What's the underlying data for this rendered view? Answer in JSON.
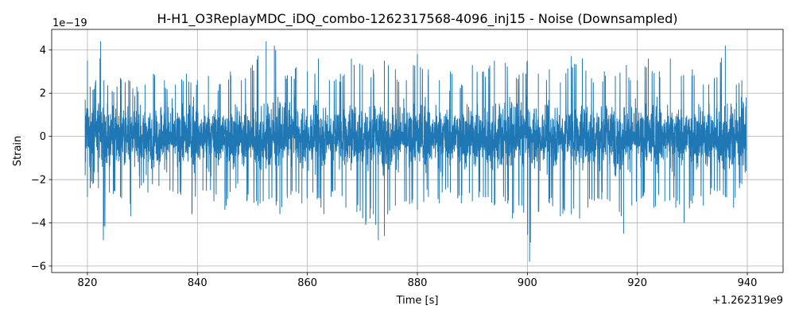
{
  "chart_data": {
    "type": "line",
    "title": "H-H1_O3ReplayMDC_iDQ_combo-1262317568-4096_inj15 - Noise (Downsampled)",
    "xlabel": "Time [s]",
    "ylabel": "Strain",
    "x_offset_label": "+1.262319e9",
    "y_scale_label": "1e−19",
    "xlim": [
      813.5,
      946.5
    ],
    "ylim": [
      -6.3,
      4.95
    ],
    "x_ticks": [
      820,
      840,
      860,
      880,
      900,
      920,
      940
    ],
    "x_tick_labels": [
      "820",
      "840",
      "860",
      "880",
      "900",
      "920",
      "940"
    ],
    "y_ticks": [
      -6,
      -4,
      -2,
      0,
      2,
      4
    ],
    "y_tick_labels": [
      "−6",
      "−4",
      "−2",
      "0",
      "2",
      "4"
    ],
    "grid": true,
    "color": "#1f77b4",
    "series": [
      {
        "x_range": [
          819.6,
          939.8
        ],
        "upper_envelope": [
          [
            819.6,
            1.7
          ],
          [
            820.0,
            3.5
          ],
          [
            820.5,
            2.3
          ],
          [
            821.5,
            2.6
          ],
          [
            822.4,
            4.4
          ],
          [
            823.0,
            2.6
          ],
          [
            824.5,
            2.1
          ],
          [
            826.0,
            2.7
          ],
          [
            827.5,
            2.6
          ],
          [
            829.0,
            2.3
          ],
          [
            830.5,
            2.4
          ],
          [
            832.0,
            2.9
          ],
          [
            834.0,
            2.6
          ],
          [
            836.0,
            2.4
          ],
          [
            838.0,
            2.9
          ],
          [
            840.0,
            2.6
          ],
          [
            842.0,
            2.8
          ],
          [
            844.0,
            2.4
          ],
          [
            846.0,
            3.0
          ],
          [
            848.0,
            2.6
          ],
          [
            850.0,
            3.3
          ],
          [
            852.5,
            4.4
          ],
          [
            854.0,
            4.2
          ],
          [
            856.0,
            2.8
          ],
          [
            858.0,
            3.2
          ],
          [
            860.0,
            3.0
          ],
          [
            862.0,
            3.6
          ],
          [
            864.0,
            2.6
          ],
          [
            866.0,
            2.9
          ],
          [
            868.0,
            3.6
          ],
          [
            870.0,
            3.3
          ],
          [
            872.0,
            3.1
          ],
          [
            874.0,
            3.5
          ],
          [
            876.0,
            3.1
          ],
          [
            878.0,
            2.6
          ],
          [
            880.0,
            3.8
          ],
          [
            882.0,
            3.1
          ],
          [
            884.0,
            2.6
          ],
          [
            886.0,
            3.0
          ],
          [
            888.0,
            2.4
          ],
          [
            890.0,
            3.3
          ],
          [
            892.0,
            3.0
          ],
          [
            894.0,
            3.5
          ],
          [
            896.0,
            3.4
          ],
          [
            898.0,
            2.7
          ],
          [
            900.0,
            3.5
          ],
          [
            902.0,
            2.9
          ],
          [
            904.0,
            3.1
          ],
          [
            906.0,
            2.5
          ],
          [
            908.0,
            3.7
          ],
          [
            910.0,
            3.6
          ],
          [
            912.0,
            2.5
          ],
          [
            914.0,
            3.0
          ],
          [
            916.0,
            2.8
          ],
          [
            918.0,
            3.3
          ],
          [
            920.0,
            2.6
          ],
          [
            922.0,
            3.6
          ],
          [
            924.0,
            3.0
          ],
          [
            926.0,
            3.6
          ],
          [
            928.0,
            2.8
          ],
          [
            930.0,
            3.1
          ],
          [
            932.0,
            2.4
          ],
          [
            934.0,
            2.7
          ],
          [
            936.0,
            4.2
          ],
          [
            938.0,
            2.4
          ],
          [
            939.0,
            2.6
          ],
          [
            939.8,
            1.8
          ]
        ],
        "lower_envelope": [
          [
            819.6,
            -1.8
          ],
          [
            820.0,
            -2.8
          ],
          [
            821.0,
            -2.2
          ],
          [
            822.0,
            -2.4
          ],
          [
            822.9,
            -4.8
          ],
          [
            824.0,
            -2.6
          ],
          [
            826.0,
            -2.8
          ],
          [
            827.9,
            -3.7
          ],
          [
            829.5,
            -2.4
          ],
          [
            831.0,
            -2.6
          ],
          [
            833.0,
            -2.3
          ],
          [
            835.0,
            -2.5
          ],
          [
            837.0,
            -2.7
          ],
          [
            839.0,
            -3.6
          ],
          [
            841.0,
            -2.5
          ],
          [
            843.0,
            -3.0
          ],
          [
            845.0,
            -3.4
          ],
          [
            847.0,
            -2.4
          ],
          [
            849.0,
            -3.0
          ],
          [
            851.0,
            -3.2
          ],
          [
            853.0,
            -2.9
          ],
          [
            855.0,
            -3.6
          ],
          [
            857.0,
            -2.7
          ],
          [
            859.0,
            -3.1
          ],
          [
            861.0,
            -2.6
          ],
          [
            863.0,
            -3.6
          ],
          [
            865.0,
            -2.5
          ],
          [
            867.0,
            -3.3
          ],
          [
            869.0,
            -3.5
          ],
          [
            870.6,
            -4.1
          ],
          [
            872.0,
            -3.6
          ],
          [
            872.9,
            -4.8
          ],
          [
            874.0,
            -4.6
          ],
          [
            876.0,
            -3.2
          ],
          [
            878.0,
            -3.0
          ],
          [
            880.0,
            -3.4
          ],
          [
            882.0,
            -2.8
          ],
          [
            884.0,
            -3.1
          ],
          [
            886.0,
            -2.6
          ],
          [
            888.0,
            -3.1
          ],
          [
            890.0,
            -3.0
          ],
          [
            892.0,
            -2.8
          ],
          [
            894.0,
            -3.2
          ],
          [
            896.0,
            -3.0
          ],
          [
            897.3,
            -3.8
          ],
          [
            899.0,
            -3.2
          ],
          [
            900.4,
            -5.8
          ],
          [
            902.0,
            -3.5
          ],
          [
            904.0,
            -3.1
          ],
          [
            906.0,
            -3.7
          ],
          [
            908.0,
            -3.6
          ],
          [
            909.5,
            -3.8
          ],
          [
            911.0,
            -3.3
          ],
          [
            913.0,
            -2.9
          ],
          [
            915.0,
            -3.0
          ],
          [
            917.5,
            -4.5
          ],
          [
            919.0,
            -3.2
          ],
          [
            921.0,
            -2.8
          ],
          [
            923.0,
            -3.3
          ],
          [
            925.0,
            -3.0
          ],
          [
            927.0,
            -3.3
          ],
          [
            928.5,
            -4.0
          ],
          [
            930.0,
            -3.1
          ],
          [
            932.0,
            -3.2
          ],
          [
            934.0,
            -2.5
          ],
          [
            936.0,
            -2.8
          ],
          [
            937.5,
            -3.3
          ],
          [
            939.0,
            -2.2
          ],
          [
            939.8,
            -1.6
          ]
        ],
        "typical_abs_amplitude": 1.3
      }
    ]
  }
}
